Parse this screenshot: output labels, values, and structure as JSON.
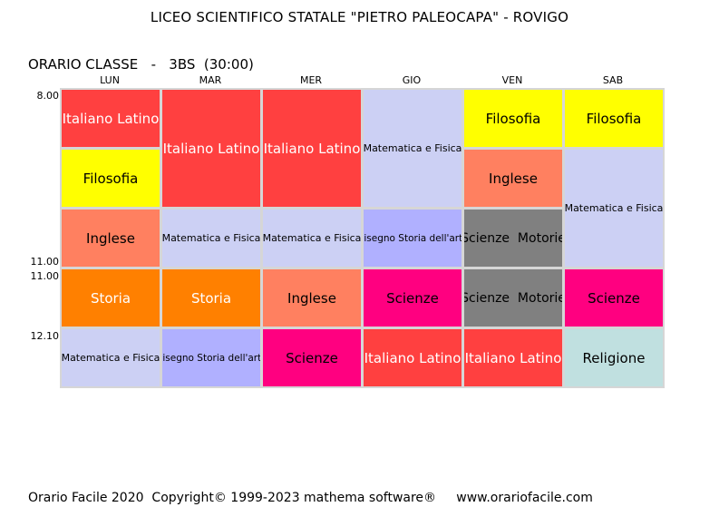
{
  "header": {
    "title": "LICEO SCIENTIFICO STATALE \"PIETRO PALEOCAPA\" - ROVIGO",
    "class_label": "ORARIO CLASSE   -   3BS  (30:00)"
  },
  "days": [
    "LUN",
    "MAR",
    "MER",
    "GIO",
    "VEN",
    "SAB"
  ],
  "times": {
    "t0800": "8.00",
    "t1100_end": "11.00",
    "t1100_start": "11.00",
    "t1210": "12.10"
  },
  "colors": {
    "italiano_latino": "#ff4040",
    "filosofia": "#ffff00",
    "inglese": "#ff8060",
    "storia": "#ff8000",
    "matematica_fisica": "#ccd0f4",
    "disegno_storia_arte": "#b0b0ff",
    "scienze": "#ff0080",
    "scienze_motorie": "#808080",
    "religione": "#c0e0e0"
  },
  "schedule": {
    "lun": [
      "Italiano Latino",
      "Filosofia",
      "Inglese",
      "Storia",
      "Matematica e Fisica"
    ],
    "mar": [
      "Italiano Latino",
      "Matematica e Fisica",
      "Storia",
      "Disegno Storia dell'arte"
    ],
    "mer": [
      "Italiano Latino",
      "Matematica e Fisica",
      "Inglese",
      "Scienze"
    ],
    "gio": [
      "Matematica e Fisica",
      "Disegno Storia dell'arte",
      "Scienze",
      "Italiano Latino"
    ],
    "ven": [
      "Filosofia",
      "Inglese",
      "Scienze  Motorie",
      "Scienze  Motorie",
      "Italiano Latino"
    ],
    "sab": [
      "Filosofia",
      "Matematica e Fisica",
      "Scienze",
      "Religione"
    ]
  },
  "footer": {
    "text": "Orario Facile 2020  Copyright© 1999-2023 mathema software®     www.orariofacile.com"
  }
}
